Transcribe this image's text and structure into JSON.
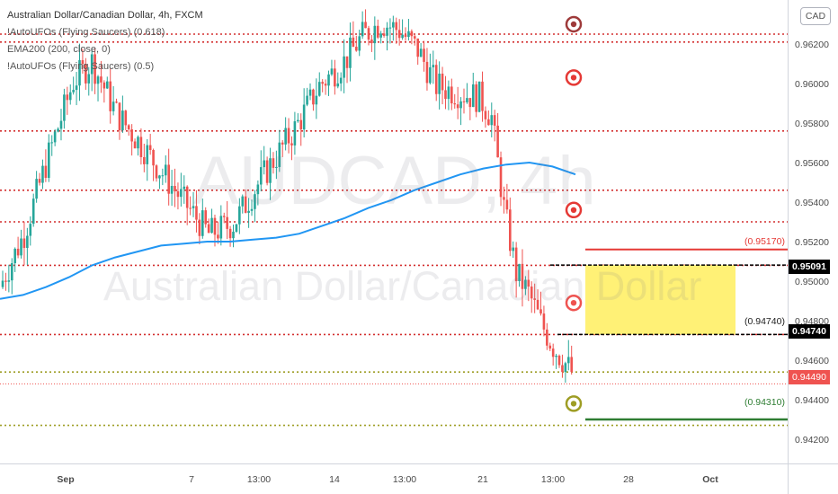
{
  "legend": {
    "title": "Australian Dollar/Canadian Dollar, 4h, FXCM",
    "ind1": "!AutoUFOs (Flying Saucers) (0.618)",
    "ind2": "EMA200 (200, close, 0)",
    "ind3": "!AutoUFOs (Flying Saucers) (0.5)"
  },
  "watermark": {
    "symbol": "AUDCAD, 4h",
    "name": "Australian Dollar/Canadian Dollar"
  },
  "currency_button": "CAD",
  "price_axis": [
    "0.96200",
    "0.96000",
    "0.95800",
    "0.95600",
    "0.95400",
    "0.95200",
    "0.95000",
    "0.94800",
    "0.94600",
    "0.94400",
    "0.94200"
  ],
  "time_axis": [
    "Sep",
    "7",
    "13:00",
    "14",
    "13:00",
    "21",
    "13:00",
    "28",
    "Oct"
  ],
  "price_tags": {
    "top_zone": "0.95091",
    "bottom_zone": "0.94740",
    "current": "0.94490"
  },
  "zone_labels": {
    "stop": "(0.95170)",
    "entry": "(0.94740)",
    "target": "(0.94310)"
  },
  "colors": {
    "up": "#26a69a",
    "down": "#ef5350",
    "ema": "#2196f3",
    "zone": "#fff176",
    "target": "#2e7d32",
    "level_red": "#d32f2f",
    "level_olive": "#9e9d24"
  },
  "chart_data": {
    "type": "candlestick",
    "title": "Australian Dollar/Canadian Dollar, 4h, FXCM",
    "ylim": [
      0.9408,
      0.964
    ],
    "price_ticks": [
      0.962,
      0.96,
      0.958,
      0.956,
      0.954,
      0.952,
      0.95,
      0.948,
      0.946,
      0.944,
      0.942
    ],
    "candles_count": 160,
    "red_levels": [
      0.9626,
      0.9622,
      0.9577,
      0.9547,
      0.9531,
      0.9509,
      0.9474
    ],
    "olive_levels": [
      0.9455,
      0.9428
    ],
    "ufo_markers": [
      {
        "price": 0.9631,
        "color": "#9e3a3a"
      },
      {
        "price": 0.9604,
        "color": "#e53935"
      },
      {
        "price": 0.9537,
        "color": "#e53935"
      },
      {
        "price": 0.949,
        "color": "#ef5350"
      },
      {
        "price": 0.9439,
        "color": "#9e9d24"
      }
    ],
    "trade_zone": {
      "top": 0.95091,
      "bottom": 0.9474
    },
    "stop": 0.9517,
    "entry": 0.9474,
    "target": 0.9431,
    "current": 0.9449,
    "ema200": [
      0.9492,
      0.9494,
      0.9498,
      0.9503,
      0.9509,
      0.9513,
      0.9516,
      0.9519,
      0.952,
      0.9521,
      0.9521,
      0.9522,
      0.9523,
      0.9525,
      0.9529,
      0.9533,
      0.9538,
      0.9542,
      0.9547,
      0.9551,
      0.9555,
      0.9558,
      0.956,
      0.9561,
      0.9559,
      0.9555
    ]
  }
}
